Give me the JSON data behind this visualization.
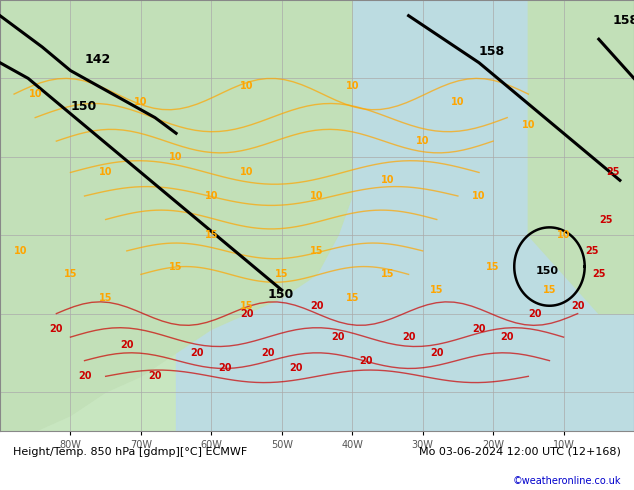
{
  "title_left": "Height/Temp. 850 hPa [gdmp][°C] ECMWF",
  "title_right": "Mo 03-06-2024 12:00 UTC (12+168)",
  "credit": "©weatheronline.co.uk",
  "bg_color": "#d0e8d0",
  "land_color": "#c8e8c0",
  "ocean_color": "#b8d8f0",
  "grid_color": "#aaaaaa",
  "bottom_bar_color": "#e8e8e8",
  "bottom_text_color": "#000000",
  "credit_color": "#0000cc",
  "axis_tick_color": "#555555",
  "lon_ticks": [
    -80,
    -70,
    -60,
    -50,
    -40,
    -30,
    -20,
    -10
  ],
  "lon_labels": [
    "80W",
    "70W",
    "60W",
    "50W",
    "40W",
    "30W",
    "20W",
    "10W"
  ],
  "height_contour_color": "#000000",
  "temp_orange_color": "#FFA500",
  "temp_red_color": "#CC0000",
  "figsize": [
    6.34,
    4.9
  ],
  "dpi": 100
}
